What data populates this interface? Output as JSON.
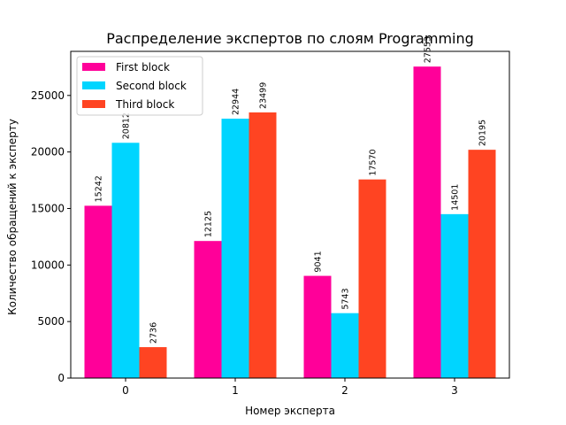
{
  "chart_data": {
    "type": "bar",
    "title": "Распределение экспертов по слоям Programming",
    "xlabel": "Номер эксперта",
    "ylabel": "Количество обращений к эксперту",
    "categories": [
      "0",
      "1",
      "2",
      "3"
    ],
    "series": [
      {
        "name": "First block",
        "color": "#ff0099",
        "values": [
          15242,
          12125,
          9041,
          27553
        ]
      },
      {
        "name": "Second block",
        "color": "#00d5ff",
        "values": [
          20812,
          22944,
          5743,
          14501
        ]
      },
      {
        "name": "Third block",
        "color": "#ff4422",
        "values": [
          2736,
          23499,
          17570,
          20195
        ]
      }
    ],
    "ylim": [
      0,
      28900
    ],
    "yticks": [
      0,
      5000,
      10000,
      15000,
      20000,
      25000
    ],
    "grid": false,
    "legend_position": "top-left"
  }
}
